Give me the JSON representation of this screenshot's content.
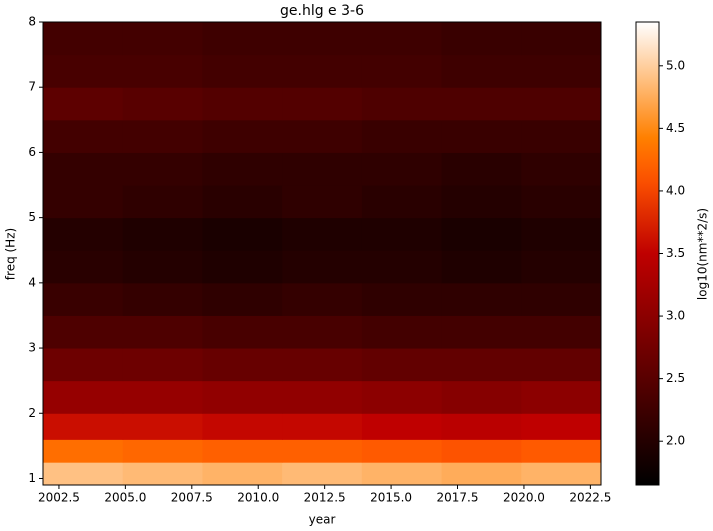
{
  "chart_data": {
    "type": "heatmap",
    "title": "ge.hlg e 3-6",
    "x_label": "year",
    "y_label": "freq (Hz)",
    "colorbar_label": "log10(nm**2/s)",
    "xlim": [
      2001.9,
      2022.9
    ],
    "ylim": [
      0.9,
      8.0
    ],
    "xticks": [
      2002.5,
      {
        "value": 2005,
        "label": "2005.0"
      },
      2007.5,
      {
        "value": 2010,
        "label": "2010.0"
      },
      2012.5,
      {
        "value": 2015,
        "label": "2015.0"
      },
      2017.5,
      {
        "value": 2020,
        "label": "2020.0"
      },
      2022.5
    ],
    "yticks": [
      1,
      2,
      3,
      4,
      5,
      6,
      7,
      8
    ],
    "x_bins": [
      2001.9,
      2004.9,
      2007.9,
      2010.9,
      2013.9,
      2016.9,
      2019.9,
      2022.9
    ],
    "y_bins": [
      0.9,
      1.25,
      1.6,
      2.0,
      2.5,
      3.0,
      3.5,
      4.0,
      4.5,
      5.0,
      5.5,
      6.0,
      6.5,
      7.0,
      7.5,
      8.0
    ],
    "z": [
      [
        4.9,
        4.85,
        4.8,
        4.85,
        4.8,
        4.75,
        4.8
      ],
      [
        4.3,
        4.25,
        4.2,
        4.2,
        4.15,
        4.1,
        4.15
      ],
      [
        3.6,
        3.6,
        3.55,
        3.55,
        3.5,
        3.45,
        3.5
      ],
      [
        3.1,
        3.1,
        3.05,
        3.05,
        3.0,
        2.95,
        3.0
      ],
      [
        2.7,
        2.7,
        2.65,
        2.65,
        2.6,
        2.6,
        2.6
      ],
      [
        2.4,
        2.4,
        2.35,
        2.35,
        2.3,
        2.3,
        2.3
      ],
      [
        2.2,
        2.15,
        2.1,
        2.15,
        2.1,
        2.1,
        2.1
      ],
      [
        2.05,
        2.0,
        1.95,
        2.0,
        2.0,
        1.95,
        2.0
      ],
      [
        2.0,
        1.95,
        1.9,
        1.95,
        1.95,
        1.9,
        1.95
      ],
      [
        2.15,
        2.1,
        2.05,
        2.1,
        2.05,
        2.0,
        2.05
      ],
      [
        2.15,
        2.15,
        2.1,
        2.1,
        2.1,
        2.05,
        2.1
      ],
      [
        2.3,
        2.3,
        2.25,
        2.25,
        2.2,
        2.2,
        2.2
      ],
      [
        2.55,
        2.5,
        2.45,
        2.45,
        2.4,
        2.4,
        2.4
      ],
      [
        2.35,
        2.35,
        2.3,
        2.3,
        2.3,
        2.25,
        2.25
      ],
      [
        2.3,
        2.3,
        2.25,
        2.25,
        2.25,
        2.2,
        2.2
      ]
    ],
    "colormap": "gist_heat",
    "colorbar_lim": [
      1.65,
      5.35
    ],
    "colorbar_ticks": [
      {
        "value": 2,
        "label": "2.0"
      },
      2.5,
      {
        "value": 3,
        "label": "3.0"
      },
      3.5,
      {
        "value": 4,
        "label": "4.0"
      },
      4.5,
      {
        "value": 5,
        "label": "5.0"
      }
    ]
  }
}
